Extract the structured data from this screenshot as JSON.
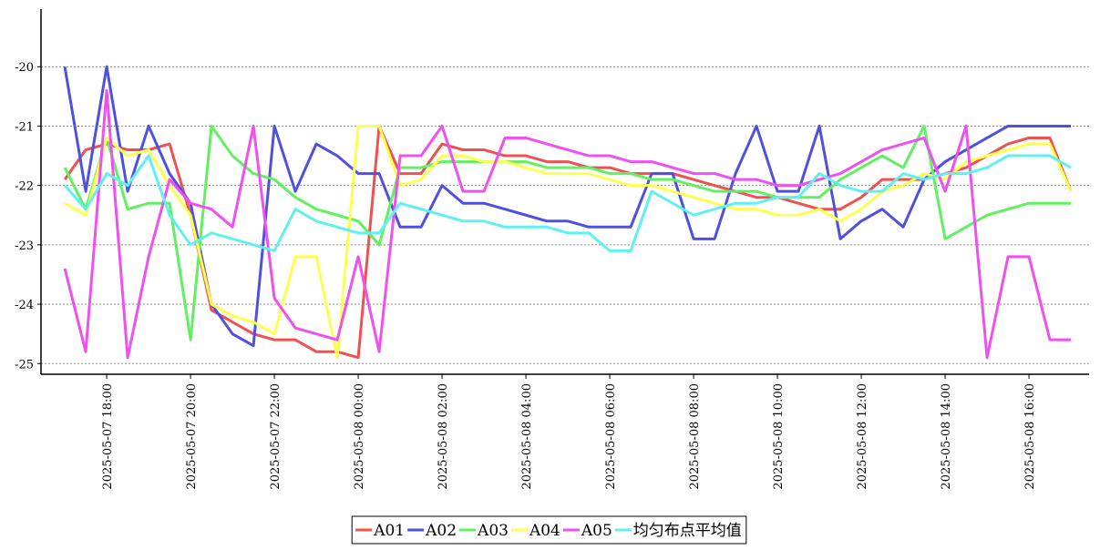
{
  "chart_data": {
    "type": "line",
    "x": [
      "2025-05-07 17:00",
      "2025-05-07 17:30",
      "2025-05-07 18:00",
      "2025-05-07 18:30",
      "2025-05-07 19:00",
      "2025-05-07 19:30",
      "2025-05-07 20:00",
      "2025-05-07 20:30",
      "2025-05-07 21:00",
      "2025-05-07 21:30",
      "2025-05-07 22:00",
      "2025-05-07 22:30",
      "2025-05-07 23:00",
      "2025-05-07 23:30",
      "2025-05-08 00:00",
      "2025-05-08 00:30",
      "2025-05-08 01:00",
      "2025-05-08 01:30",
      "2025-05-08 02:00",
      "2025-05-08 02:30",
      "2025-05-08 03:00",
      "2025-05-08 03:30",
      "2025-05-08 04:00",
      "2025-05-08 04:30",
      "2025-05-08 05:00",
      "2025-05-08 05:30",
      "2025-05-08 06:00",
      "2025-05-08 06:30",
      "2025-05-08 07:00",
      "2025-05-08 07:30",
      "2025-05-08 08:00",
      "2025-05-08 08:30",
      "2025-05-08 09:00",
      "2025-05-08 09:30",
      "2025-05-08 10:00",
      "2025-05-08 10:30",
      "2025-05-08 11:00",
      "2025-05-08 11:30",
      "2025-05-08 12:00",
      "2025-05-08 12:30",
      "2025-05-08 13:00",
      "2025-05-08 13:30",
      "2025-05-08 14:00",
      "2025-05-08 14:30",
      "2025-05-08 15:00",
      "2025-05-08 15:30",
      "2025-05-08 16:00",
      "2025-05-08 16:30",
      "2025-05-08 17:00"
    ],
    "series": [
      {
        "name": "A01",
        "color": "#f05050",
        "values": [
          -21.9,
          -21.4,
          -21.3,
          -21.4,
          -21.4,
          -21.3,
          -22.5,
          -24.1,
          -24.3,
          -24.5,
          -24.6,
          -24.6,
          -24.8,
          -24.8,
          -24.9,
          -21.0,
          -21.8,
          -21.8,
          -21.3,
          -21.4,
          -21.4,
          -21.5,
          -21.5,
          -21.6,
          -21.6,
          -21.7,
          -21.7,
          -21.8,
          -21.8,
          -21.8,
          -21.9,
          -22.0,
          -22.1,
          -22.2,
          -22.2,
          -22.3,
          -22.4,
          -22.4,
          -22.2,
          -21.9,
          -21.9,
          -21.9,
          -21.8,
          -21.7,
          -21.5,
          -21.3,
          -21.2,
          -21.2,
          -22.1
        ]
      },
      {
        "name": "A02",
        "color": "#5050e0",
        "values": [
          -20.0,
          -22.1,
          -20.0,
          -22.1,
          -21.0,
          -21.8,
          -22.3,
          -24.0,
          -24.5,
          -24.7,
          -21.0,
          -22.1,
          -21.3,
          -21.5,
          -21.8,
          -21.8,
          -22.7,
          -22.7,
          -22.0,
          -22.3,
          -22.3,
          -22.4,
          -22.5,
          -22.6,
          -22.6,
          -22.7,
          -22.7,
          -22.7,
          -21.8,
          -21.8,
          -22.9,
          -22.9,
          -21.8,
          -21.0,
          -22.1,
          -22.1,
          -21.0,
          -22.9,
          -22.6,
          -22.4,
          -22.7,
          -21.9,
          -21.6,
          -21.4,
          -21.2,
          -21.0,
          -21.0,
          -21.0,
          -21.0
        ]
      },
      {
        "name": "A03",
        "color": "#60f060",
        "values": [
          -21.7,
          -22.4,
          -21.2,
          -22.4,
          -22.3,
          -22.3,
          -24.6,
          -21.0,
          -21.5,
          -21.8,
          -21.9,
          -22.2,
          -22.4,
          -22.5,
          -22.6,
          -23.0,
          -21.7,
          -21.7,
          -21.6,
          -21.6,
          -21.6,
          -21.6,
          -21.6,
          -21.7,
          -21.7,
          -21.7,
          -21.8,
          -21.8,
          -21.9,
          -21.9,
          -22.0,
          -22.1,
          -22.1,
          -22.1,
          -22.2,
          -22.2,
          -22.2,
          -21.9,
          -21.7,
          -21.5,
          -21.7,
          -21.0,
          -22.9,
          -22.7,
          -22.5,
          -22.4,
          -22.3,
          -22.3,
          -22.3
        ]
      },
      {
        "name": "A04",
        "color": "#ffff50",
        "values": [
          -22.3,
          -22.5,
          -21.2,
          -21.5,
          -21.4,
          -22.0,
          -22.5,
          -24.0,
          -24.2,
          -24.3,
          -24.5,
          -23.2,
          -23.2,
          -24.9,
          -21.0,
          -21.0,
          -22.0,
          -21.9,
          -21.5,
          -21.5,
          -21.6,
          -21.6,
          -21.7,
          -21.8,
          -21.8,
          -21.8,
          -21.9,
          -22.0,
          -22.0,
          -22.1,
          -22.2,
          -22.3,
          -22.4,
          -22.4,
          -22.5,
          -22.5,
          -22.4,
          -22.6,
          -22.4,
          -22.1,
          -22.0,
          -21.8,
          -21.9,
          -21.6,
          -21.5,
          -21.4,
          -21.3,
          -21.3,
          -22.1
        ]
      },
      {
        "name": "A05",
        "color": "#f050f0",
        "values": [
          -23.4,
          -24.8,
          -20.4,
          -24.9,
          -23.2,
          -21.9,
          -22.3,
          -22.4,
          -22.7,
          -21.0,
          -23.9,
          -24.4,
          -24.5,
          -24.6,
          -23.2,
          -24.8,
          -21.5,
          -21.5,
          -21.0,
          -22.1,
          -22.1,
          -21.2,
          -21.2,
          -21.3,
          -21.4,
          -21.5,
          -21.5,
          -21.6,
          -21.6,
          -21.7,
          -21.8,
          -21.8,
          -21.9,
          -21.9,
          -22.0,
          -22.0,
          -21.9,
          -21.8,
          -21.6,
          -21.4,
          -21.3,
          -21.2,
          -22.1,
          -21.0,
          -24.9,
          -23.2,
          -23.2,
          -24.6,
          -24.6
        ]
      },
      {
        "name": "均匀布点平均值",
        "color": "#60f0f0",
        "values": [
          -22.0,
          -22.4,
          -21.8,
          -22.0,
          -21.5,
          -22.5,
          -23.0,
          -22.8,
          -22.9,
          -23.0,
          -23.1,
          -22.4,
          -22.6,
          -22.7,
          -22.8,
          -22.8,
          -22.3,
          -22.4,
          -22.5,
          -22.6,
          -22.6,
          -22.7,
          -22.7,
          -22.7,
          -22.8,
          -22.8,
          -23.1,
          -23.1,
          -22.1,
          -22.3,
          -22.5,
          -22.4,
          -22.3,
          -22.3,
          -22.2,
          -22.2,
          -21.8,
          -22.0,
          -22.1,
          -22.1,
          -21.8,
          -21.9,
          -21.8,
          -21.8,
          -21.7,
          -21.5,
          -21.5,
          -21.5,
          -21.7
        ]
      }
    ],
    "xlim": [
      "2025-05-07 16:26",
      "2025-05-08 17:26"
    ],
    "xticks": [
      "2025-05-07 18:00",
      "2025-05-07 20:00",
      "2025-05-07 22:00",
      "2025-05-08 00:00",
      "2025-05-08 02:00",
      "2025-05-08 04:00",
      "2025-05-08 06:00",
      "2025-05-08 08:00",
      "2025-05-08 10:00",
      "2025-05-08 12:00",
      "2025-05-08 14:00",
      "2025-05-08 16:00"
    ],
    "ylim": [
      -25.18,
      -19.03
    ],
    "yticks": [
      -25,
      -24,
      -23,
      -22,
      -21,
      -20
    ],
    "grid": true,
    "legend": "bottom"
  }
}
